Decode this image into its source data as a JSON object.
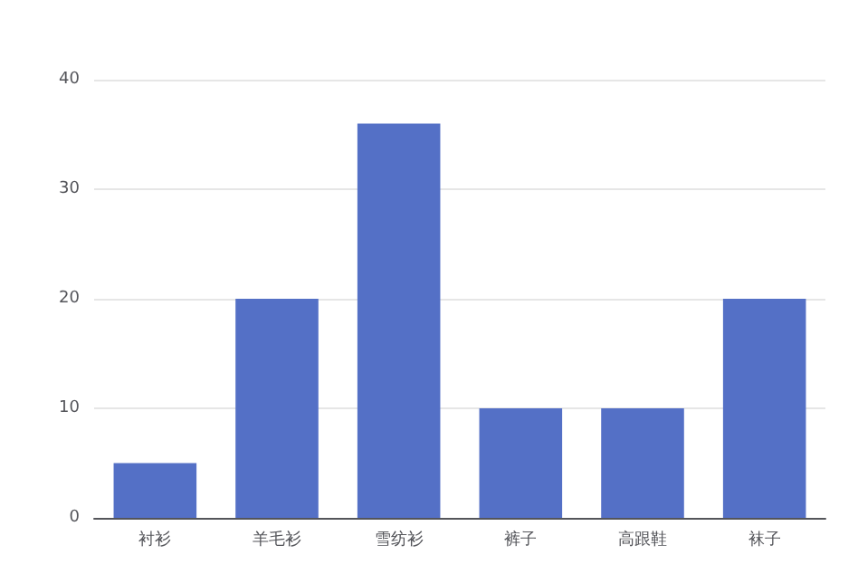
{
  "chart_data": {
    "type": "bar",
    "categories": [
      "衬衫",
      "羊毛衫",
      "雪纺衫",
      "裤子",
      "高跟鞋",
      "袜子"
    ],
    "values": [
      5,
      20,
      36,
      10,
      10,
      20
    ],
    "color": "#5470c6",
    "ylim": [
      0,
      40
    ],
    "yticks": [
      0,
      10,
      20,
      30,
      40
    ],
    "grid": "y"
  }
}
